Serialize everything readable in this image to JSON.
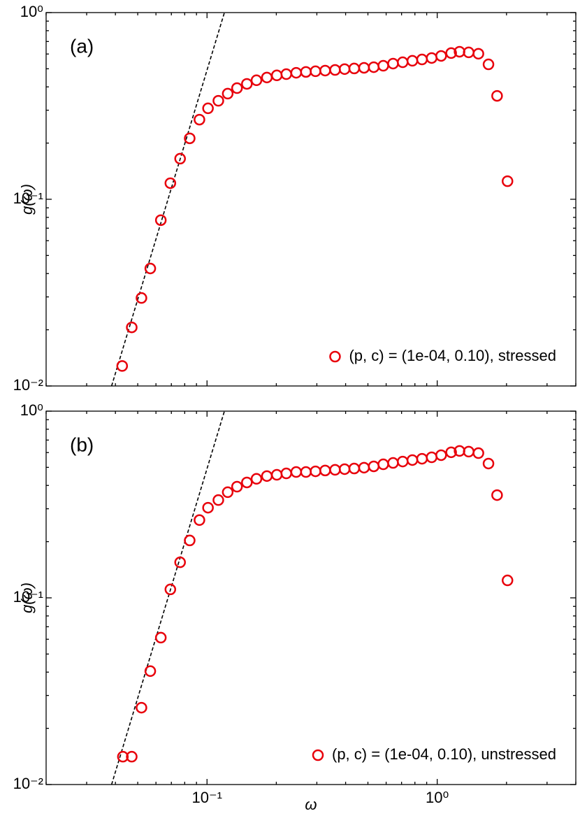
{
  "chart_data": [
    {
      "type": "scatter",
      "annotation": "(a)",
      "ylabel": "g(ω)",
      "xscale": "log",
      "yscale": "log",
      "xlim": [
        0.02,
        4
      ],
      "ylim": [
        0.01,
        1
      ],
      "xticks": [
        0.1,
        1
      ],
      "yticks": [
        {
          "value": 0.01,
          "label": "10⁻²"
        },
        {
          "value": 0.1,
          "label": "10⁻¹"
        },
        {
          "value": 1,
          "label": "10⁰"
        }
      ],
      "legend": "lower right",
      "series": [
        {
          "name": "(p, c) = (1e-04, 0.10), stressed",
          "color": "#e8000b",
          "x": [
            0.0428,
            0.0471,
            0.0519,
            0.0567,
            0.063,
            0.0693,
            0.0764,
            0.0841,
            0.0927,
            0.101,
            0.112,
            0.123,
            0.135,
            0.149,
            0.164,
            0.182,
            0.201,
            0.221,
            0.244,
            0.269,
            0.296,
            0.326,
            0.36,
            0.396,
            0.436,
            0.481,
            0.53,
            0.583,
            0.643,
            0.708,
            0.78,
            0.859,
            0.946,
            1.04,
            1.15,
            1.25,
            1.37,
            1.51,
            1.67,
            1.82,
            2.02
          ],
          "values": [
            0.0128,
            0.0206,
            0.0296,
            0.0426,
            0.0773,
            0.122,
            0.165,
            0.212,
            0.267,
            0.307,
            0.337,
            0.368,
            0.394,
            0.415,
            0.434,
            0.449,
            0.461,
            0.468,
            0.476,
            0.481,
            0.485,
            0.489,
            0.493,
            0.498,
            0.502,
            0.506,
            0.51,
            0.519,
            0.533,
            0.542,
            0.552,
            0.561,
            0.571,
            0.586,
            0.607,
            0.617,
            0.612,
            0.602,
            0.528,
            0.358,
            0.125
          ]
        }
      ],
      "reference_line": {
        "x": [
          0.0385,
          0.119
        ],
        "values": [
          0.01,
          1
        ],
        "color": "#000000",
        "style": "dashed"
      }
    },
    {
      "type": "scatter",
      "annotation": "(b)",
      "ylabel": "g(ω)",
      "xlabel": "ω",
      "xscale": "log",
      "yscale": "log",
      "xlim": [
        0.02,
        4
      ],
      "ylim": [
        0.01,
        1
      ],
      "xticks": [
        {
          "value": 0.1,
          "label": "10⁻¹"
        },
        {
          "value": 1,
          "label": "10⁰"
        }
      ],
      "yticks": [
        {
          "value": 0.01,
          "label": "10⁻²"
        },
        {
          "value": 0.1,
          "label": "10⁻¹"
        },
        {
          "value": 1,
          "label": "10⁰"
        }
      ],
      "legend": "lower right",
      "series": [
        {
          "name": "(p, c) = (1e-04, 0.10), unstressed",
          "color": "#e8000b",
          "x": [
            0.0431,
            0.0471,
            0.0519,
            0.0567,
            0.063,
            0.0693,
            0.0764,
            0.0841,
            0.0927,
            0.101,
            0.112,
            0.123,
            0.135,
            0.149,
            0.164,
            0.182,
            0.201,
            0.221,
            0.244,
            0.269,
            0.296,
            0.326,
            0.36,
            0.396,
            0.436,
            0.481,
            0.53,
            0.583,
            0.643,
            0.708,
            0.78,
            0.859,
            0.946,
            1.04,
            1.15,
            1.25,
            1.37,
            1.51,
            1.67,
            1.82,
            2.02
          ],
          "values": [
            0.0141,
            0.0141,
            0.0258,
            0.0405,
            0.0612,
            0.111,
            0.155,
            0.203,
            0.261,
            0.304,
            0.334,
            0.368,
            0.394,
            0.415,
            0.434,
            0.449,
            0.456,
            0.464,
            0.472,
            0.472,
            0.476,
            0.481,
            0.485,
            0.489,
            0.493,
            0.498,
            0.506,
            0.519,
            0.528,
            0.537,
            0.547,
            0.556,
            0.566,
            0.581,
            0.602,
            0.612,
            0.607,
            0.596,
            0.524,
            0.355,
            0.124
          ]
        }
      ],
      "reference_line": {
        "x": [
          0.0385,
          0.119
        ],
        "values": [
          0.01,
          1
        ],
        "color": "#000000",
        "style": "dashed"
      }
    }
  ]
}
